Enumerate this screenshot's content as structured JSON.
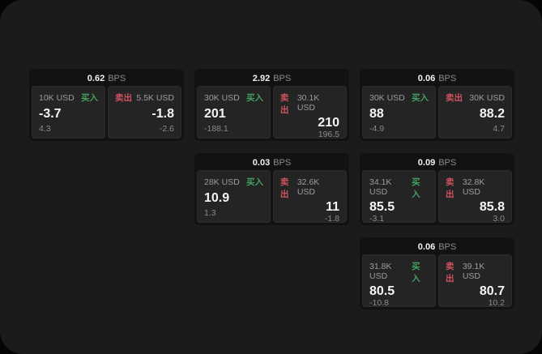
{
  "labels": {
    "bps": "BPS",
    "buy": "买入",
    "sell": "卖出"
  },
  "colors": {
    "window_background": "#1b1b1b",
    "card_background": "#121212",
    "tile_background": "#242424",
    "buy_accent": "#42a05e",
    "sell_accent": "#cf5360",
    "primary_text": "#f5f5f5",
    "muted_text": "#8a8a8a"
  },
  "cards": [
    {
      "bps": "0.62",
      "buy": {
        "amount": "10K USD",
        "price": "-3.7",
        "change": "4.3"
      },
      "sell": {
        "amount": "5.5K USD",
        "price": "-1.8",
        "change": "-2.6"
      }
    },
    {
      "bps": "2.92",
      "buy": {
        "amount": "30K USD",
        "price": "201",
        "change": "-188.1"
      },
      "sell": {
        "amount": "30.1K USD",
        "price": "210",
        "change": "196.5"
      }
    },
    {
      "bps": "0.06",
      "buy": {
        "amount": "30K USD",
        "price": "88",
        "change": "-4.9"
      },
      "sell": {
        "amount": "30K USD",
        "price": "88.2",
        "change": "4.7"
      }
    },
    {
      "bps": "0.03",
      "buy": {
        "amount": "28K USD",
        "price": "10.9",
        "change": "1.3"
      },
      "sell": {
        "amount": "32.6K USD",
        "price": "11",
        "change": "-1.8"
      }
    },
    {
      "bps": "0.09",
      "buy": {
        "amount": "34.1K USD",
        "price": "85.5",
        "change": "-3.1"
      },
      "sell": {
        "amount": "32.8K USD",
        "price": "85.8",
        "change": "3.0"
      }
    },
    {
      "bps": "0.06",
      "buy": {
        "amount": "31.8K USD",
        "price": "80.5",
        "change": "-10.8"
      },
      "sell": {
        "amount": "39.1K USD",
        "price": "80.7",
        "change": "10.2"
      }
    }
  ]
}
